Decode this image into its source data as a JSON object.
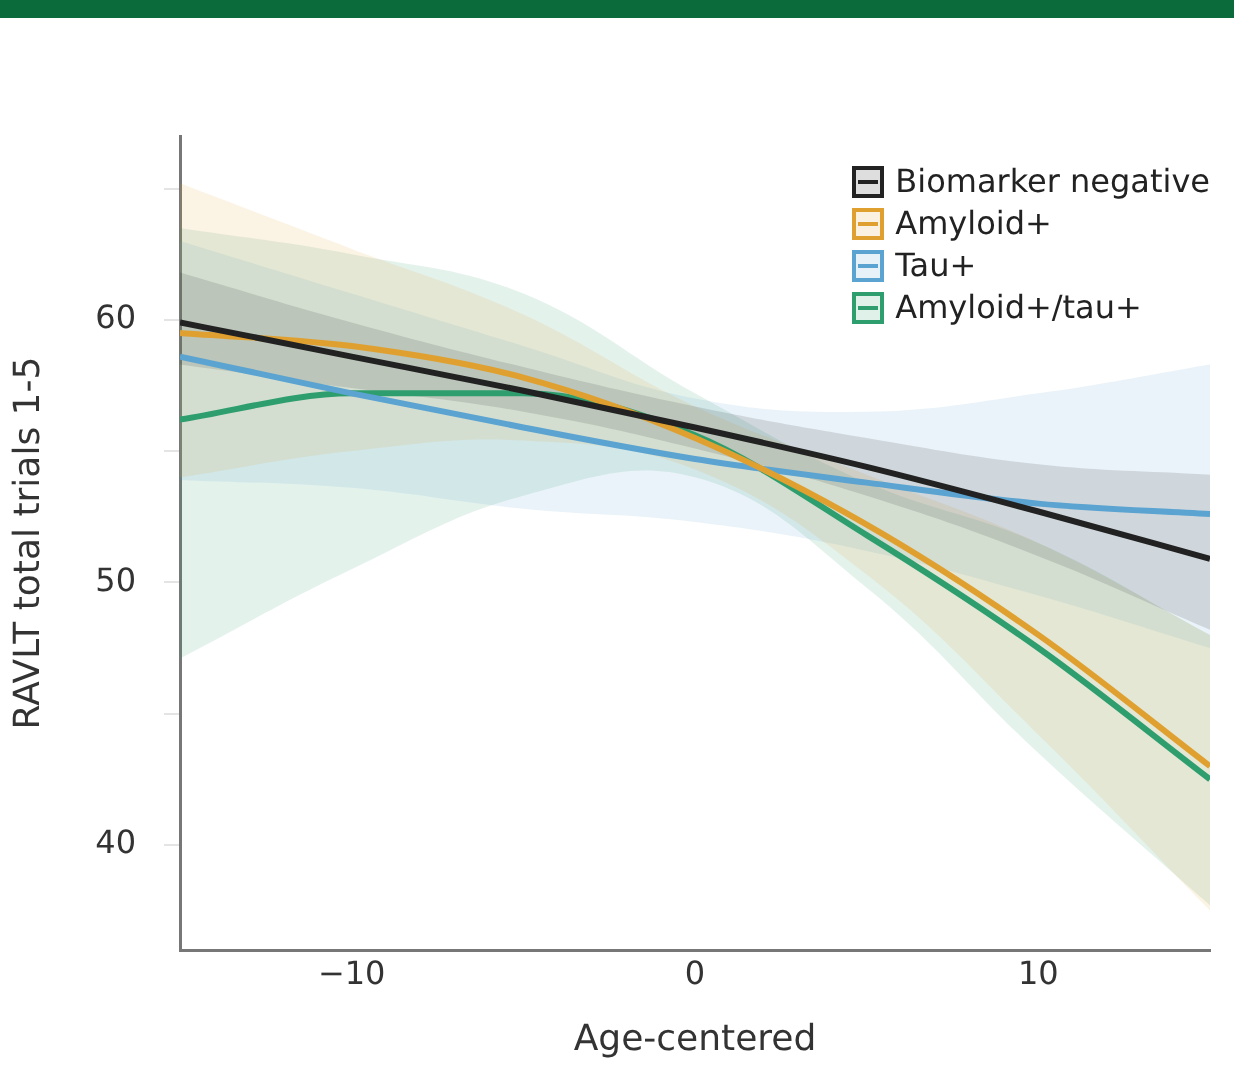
{
  "chart_data": {
    "type": "line",
    "xlabel": "Age-centered",
    "ylabel": "RAVLT total trials 1-5",
    "x": [
      -15,
      -10,
      -5,
      0,
      5,
      10,
      15
    ],
    "series": [
      {
        "name": "Biomarker negative",
        "color": "#222222",
        "values": [
          59.9,
          58.6,
          57.3,
          55.9,
          54.4,
          52.7,
          50.9
        ],
        "lower": [
          58.3,
          57.4,
          56.5,
          55.1,
          53.3,
          51.0,
          48.2
        ],
        "upper": [
          61.8,
          59.9,
          58.2,
          56.7,
          55.5,
          54.5,
          54.1
        ]
      },
      {
        "name": "Amyloid+",
        "color": "#e0a030",
        "values": [
          59.5,
          59.0,
          57.8,
          55.5,
          52.2,
          48.0,
          43.0
        ],
        "lower": [
          54.0,
          55.0,
          55.4,
          54.3,
          50.3,
          44.2,
          37.5
        ],
        "upper": [
          65.2,
          62.7,
          60.2,
          56.7,
          54.1,
          51.5,
          48.0
        ]
      },
      {
        "name": "Tau+",
        "color": "#5ba3d0",
        "values": [
          58.6,
          57.2,
          55.9,
          54.7,
          53.8,
          53.0,
          52.6
        ],
        "lower": [
          53.9,
          53.6,
          52.8,
          52.3,
          51.2,
          49.5,
          47.5
        ],
        "upper": [
          63.0,
          61.0,
          59.0,
          57.0,
          56.5,
          57.2,
          58.3
        ]
      },
      {
        "name": "Amyloid+/tau+",
        "color": "#2e9e6e",
        "values": [
          56.2,
          57.2,
          57.2,
          55.6,
          51.8,
          47.5,
          42.5
        ],
        "lower": [
          47.1,
          50.5,
          53.3,
          54.0,
          49.8,
          43.5,
          37.7
        ],
        "upper": [
          63.5,
          62.5,
          61.0,
          57.2,
          53.8,
          51.5,
          48.0
        ]
      }
    ],
    "xlim": [
      -15,
      15
    ],
    "xticks": [
      -10,
      0,
      10
    ],
    "ylim": [
      36,
      67
    ],
    "yticks": [
      40,
      {
        "value": 45,
        "label": null
      },
      50,
      {
        "value": 55,
        "label": null
      },
      60,
      {
        "value": 65,
        "label": null
      }
    ],
    "grid": false,
    "legend": "top right",
    "marker": "none",
    "line_style": "solid"
  }
}
